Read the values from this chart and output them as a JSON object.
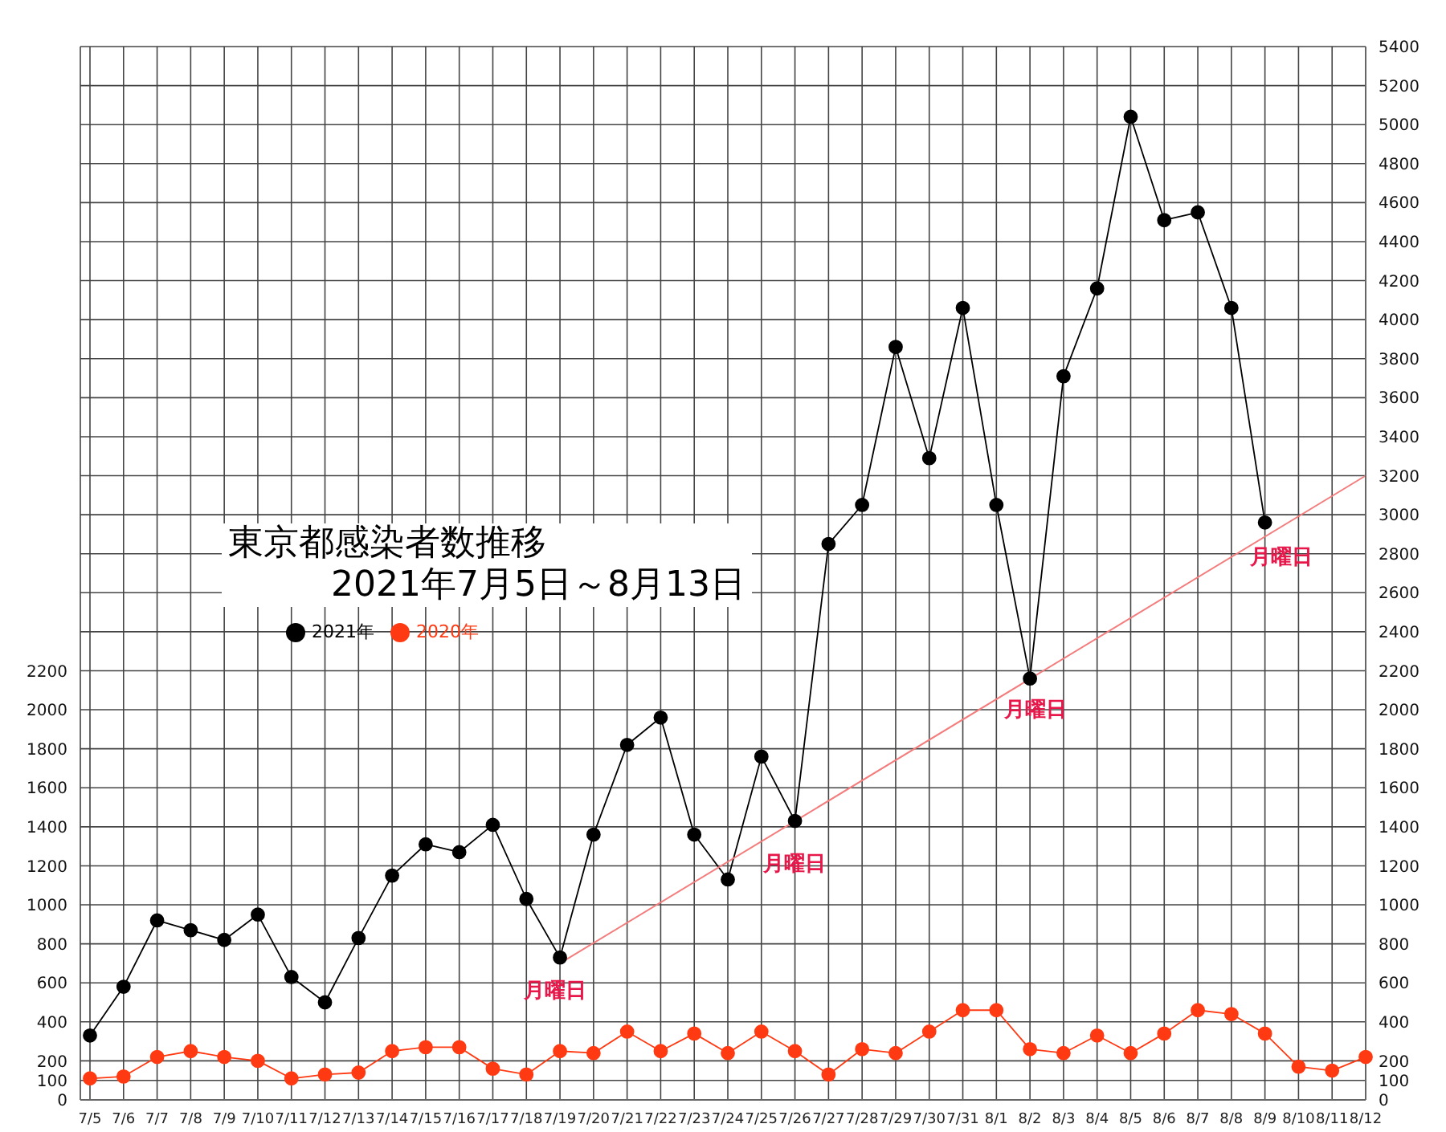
{
  "chart_data": {
    "type": "line",
    "title": "東京都感染者数推移",
    "subtitle": "2021年7月5日～8月13日",
    "categories": [
      "7/5",
      "7/6",
      "7/7",
      "7/8",
      "7/9",
      "7/10",
      "7/11",
      "7/12",
      "7/13",
      "7/14",
      "7/15",
      "7/16",
      "7/17",
      "7/18",
      "7/19",
      "7/20",
      "7/21",
      "7/22",
      "7/23",
      "7/24",
      "7/25",
      "7/26",
      "7/27",
      "7/28",
      "7/29",
      "7/30",
      "7/31",
      "8/1",
      "8/2",
      "8/3",
      "8/4",
      "8/5",
      "8/6",
      "8/7",
      "8/8",
      "8/9",
      "8/10",
      "8/11",
      "8/12"
    ],
    "series": [
      {
        "name": "2021年",
        "color": "#000000",
        "marker": "circle",
        "values": [
          330,
          580,
          920,
          870,
          820,
          950,
          630,
          500,
          830,
          1150,
          1310,
          1270,
          1410,
          1030,
          730,
          1360,
          1820,
          1960,
          1360,
          1130,
          1760,
          1430,
          2850,
          3050,
          3860,
          3290,
          4060,
          3050,
          2160,
          3710,
          4160,
          5040,
          4510,
          4550,
          4060,
          2960,
          null,
          null,
          null
        ]
      },
      {
        "name": "2020年",
        "color": "#ff3a12",
        "marker": "circle",
        "values": [
          110,
          120,
          220,
          250,
          220,
          200,
          110,
          130,
          140,
          250,
          270,
          270,
          160,
          130,
          250,
          240,
          350,
          250,
          340,
          240,
          350,
          250,
          130,
          260,
          240,
          350,
          460,
          460,
          260,
          240,
          330,
          240,
          340,
          460,
          440,
          340,
          170,
          150,
          220
        ]
      },
      {
        "type": "line",
        "color": "#f47c7c",
        "marker": "none",
        "values": [
          null,
          null,
          null,
          null,
          null,
          null,
          null,
          null,
          null,
          null,
          null,
          null,
          null,
          null,
          700,
          null,
          null,
          null,
          null,
          null,
          null,
          null,
          null,
          null,
          null,
          null,
          null,
          null,
          null,
          null,
          null,
          null,
          null,
          null,
          null,
          null,
          null,
          null,
          3200
        ]
      }
    ],
    "ylim": [
      0,
      5400
    ],
    "yticks": [
      0,
      100,
      200,
      400,
      600,
      800,
      1000,
      1200,
      1400,
      1600,
      1800,
      2000,
      2200
    ],
    "y2lim": [
      0,
      5400
    ],
    "y2ticks": [
      0,
      100,
      200,
      400,
      600,
      800,
      1000,
      1200,
      1400,
      1600,
      1800,
      2000,
      2200,
      2400,
      2600,
      2800,
      3000,
      3200,
      3400,
      3600,
      3800,
      4000,
      4200,
      4400,
      4600,
      4800,
      5000,
      5200,
      5400
    ],
    "annotations": [
      "月曜日",
      "月曜日",
      "月曜日",
      "月曜日"
    ],
    "grid": true,
    "legend": "left"
  }
}
